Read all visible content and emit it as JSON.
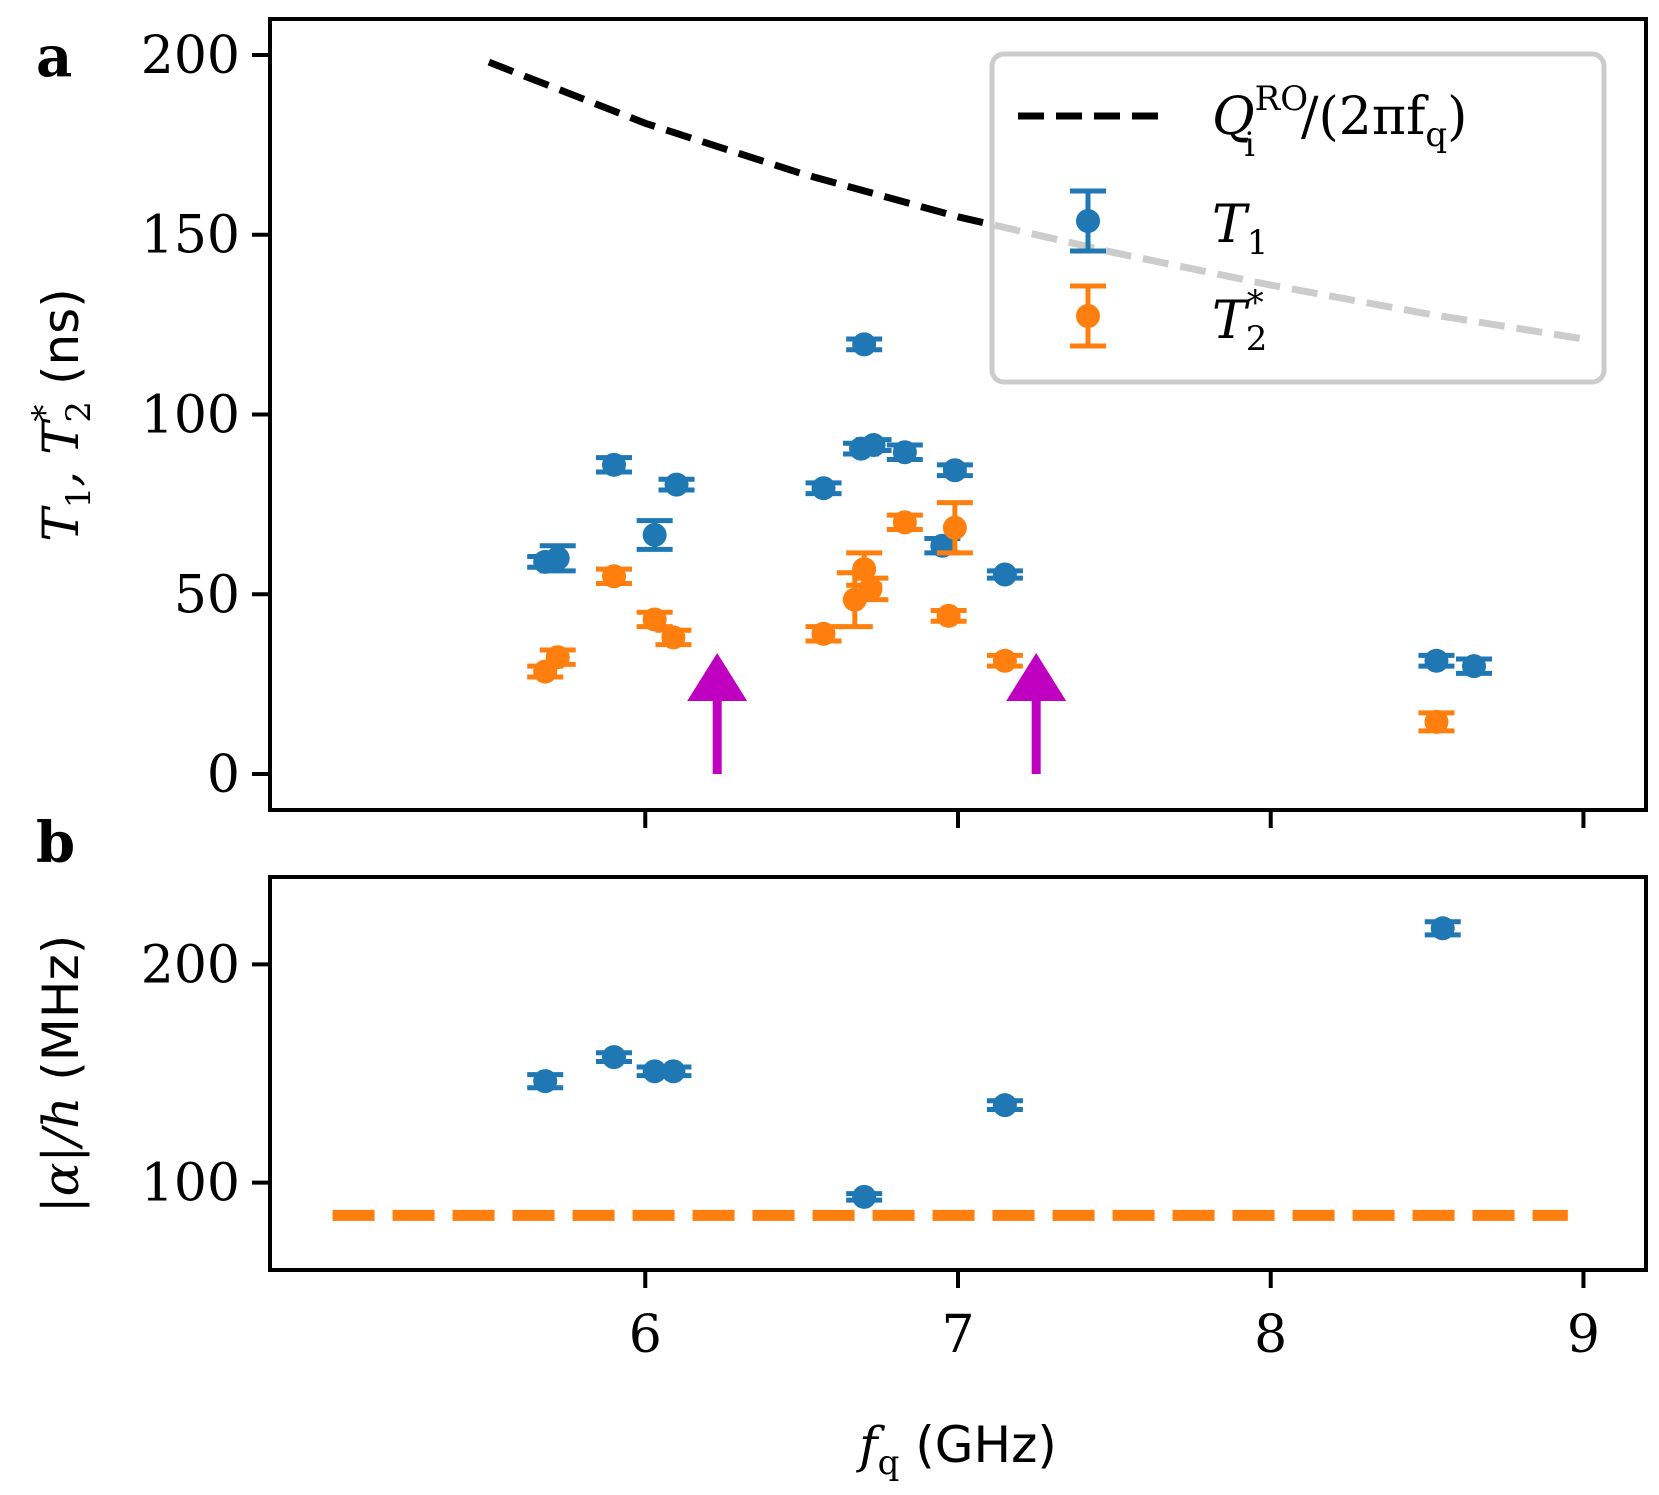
{
  "colors": {
    "blue": "#1f77b4",
    "orange": "#ff7f0e",
    "magenta": "#c000c0",
    "black": "#000000",
    "legend_grey": "#cccccc"
  },
  "chart_data": [
    {
      "panel": "a",
      "type": "scatter",
      "ylabel": {
        "main": "T",
        "sub1": "1",
        "sep": ", T",
        "sub2": "2",
        "sup2": "*",
        "unit": " (ns)"
      },
      "xlim": [
        4.8,
        9.2
      ],
      "ylim": [
        -10,
        210
      ],
      "yticks": [
        "0",
        "50",
        "100",
        "150",
        "200"
      ],
      "yticks_values": [
        0,
        50,
        100,
        150,
        200
      ],
      "xticks_values": [
        6,
        7,
        8,
        9
      ],
      "series": [
        {
          "name": "T1",
          "color": "blue",
          "points": [
            {
              "x": 5.68,
              "y": 59,
              "err": 1.5
            },
            {
              "x": 5.72,
              "y": 60,
              "err": 3.5
            },
            {
              "x": 5.9,
              "y": 86,
              "err": 2
            },
            {
              "x": 6.03,
              "y": 66.5,
              "err": 4
            },
            {
              "x": 6.1,
              "y": 80.5,
              "err": 1.5
            },
            {
              "x": 6.57,
              "y": 79.5,
              "err": 1.5
            },
            {
              "x": 6.69,
              "y": 90.5,
              "err": 1.5
            },
            {
              "x": 6.7,
              "y": 119.5,
              "err": 1.5
            },
            {
              "x": 6.73,
              "y": 91.5,
              "err": 1.5
            },
            {
              "x": 6.83,
              "y": 89.5,
              "err": 2
            },
            {
              "x": 6.95,
              "y": 63.5,
              "err": 2
            },
            {
              "x": 6.99,
              "y": 84.5,
              "err": 1.5
            },
            {
              "x": 7.15,
              "y": 55.5,
              "err": 1
            },
            {
              "x": 8.53,
              "y": 31.5,
              "err": 1.5
            },
            {
              "x": 8.65,
              "y": 30,
              "err": 2
            }
          ]
        },
        {
          "name": "T2*",
          "color": "orange",
          "points": [
            {
              "x": 5.68,
              "y": 28.5,
              "err": 1.5
            },
            {
              "x": 5.72,
              "y": 32.5,
              "err": 2
            },
            {
              "x": 5.9,
              "y": 55,
              "err": 2
            },
            {
              "x": 6.03,
              "y": 43,
              "err": 2
            },
            {
              "x": 6.09,
              "y": 38,
              "err": 2
            },
            {
              "x": 6.57,
              "y": 39,
              "err": 2
            },
            {
              "x": 6.67,
              "y": 48.5,
              "err": 7.5
            },
            {
              "x": 6.7,
              "y": 57,
              "err": 4.5
            },
            {
              "x": 6.72,
              "y": 51.5,
              "err": 3
            },
            {
              "x": 6.83,
              "y": 70,
              "err": 2
            },
            {
              "x": 6.97,
              "y": 44,
              "err": 1.5
            },
            {
              "x": 6.99,
              "y": 68.5,
              "err": 7
            },
            {
              "x": 7.15,
              "y": 31.5,
              "err": 1.5
            },
            {
              "x": 8.53,
              "y": 14.5,
              "err": 2.5
            }
          ]
        }
      ],
      "reference_curve": {
        "name": "Q_i^RO/(2π f_q)",
        "style": "dashed",
        "color": "black",
        "points": [
          {
            "x": 5.5,
            "y": 198
          },
          {
            "x": 6.0,
            "y": 181
          },
          {
            "x": 6.5,
            "y": 167
          },
          {
            "x": 7.0,
            "y": 155
          },
          {
            "x": 7.5,
            "y": 145
          },
          {
            "x": 8.0,
            "y": 136
          },
          {
            "x": 8.5,
            "y": 128
          },
          {
            "x": 9.0,
            "y": 121
          }
        ]
      },
      "arrows": [
        {
          "x": 6.23,
          "y_from": 0,
          "y_to": 32,
          "color": "magenta"
        },
        {
          "x": 7.25,
          "y_from": 0,
          "y_to": 32,
          "color": "magenta"
        }
      ],
      "legend": {
        "position": "top-right",
        "entries": [
          {
            "label_main": "Q",
            "label_sup": "RO",
            "label_sub": "i",
            "label_rest": "/(2πf",
            "label_sub2": "q",
            "label_end": ")"
          },
          {
            "label_main": "T",
            "label_sub": "1"
          },
          {
            "label_main": "T",
            "label_sub": "2",
            "label_sup": "*"
          }
        ]
      }
    },
    {
      "panel": "b",
      "type": "scatter",
      "ylabel": {
        "text": "|α|/h",
        "unit": " (MHz)"
      },
      "xlabel": {
        "main": "f",
        "sub": "q",
        "unit": " (GHz)"
      },
      "xlim": [
        4.8,
        9.2
      ],
      "ylim": [
        60,
        240
      ],
      "yticks": [
        "100",
        "200"
      ],
      "yticks_values": [
        100,
        200
      ],
      "xticks": [
        "6",
        "7",
        "8",
        "9"
      ],
      "xticks_values": [
        6,
        7,
        8,
        9
      ],
      "series": [
        {
          "name": "alpha",
          "color": "blue",
          "points": [
            {
              "x": 5.68,
              "y": 146.5,
              "err": 3
            },
            {
              "x": 5.9,
              "y": 157.5,
              "err": 2
            },
            {
              "x": 6.03,
              "y": 151,
              "err": 2
            },
            {
              "x": 6.09,
              "y": 151,
              "err": 2
            },
            {
              "x": 6.7,
              "y": 93.5,
              "err": 1.5
            },
            {
              "x": 7.15,
              "y": 135.5,
              "err": 2
            },
            {
              "x": 8.55,
              "y": 216.5,
              "err": 3
            }
          ]
        }
      ],
      "reference_line": {
        "y": 85,
        "x_from": 5.0,
        "x_to": 8.95,
        "style": "dashed",
        "color": "orange"
      }
    }
  ]
}
